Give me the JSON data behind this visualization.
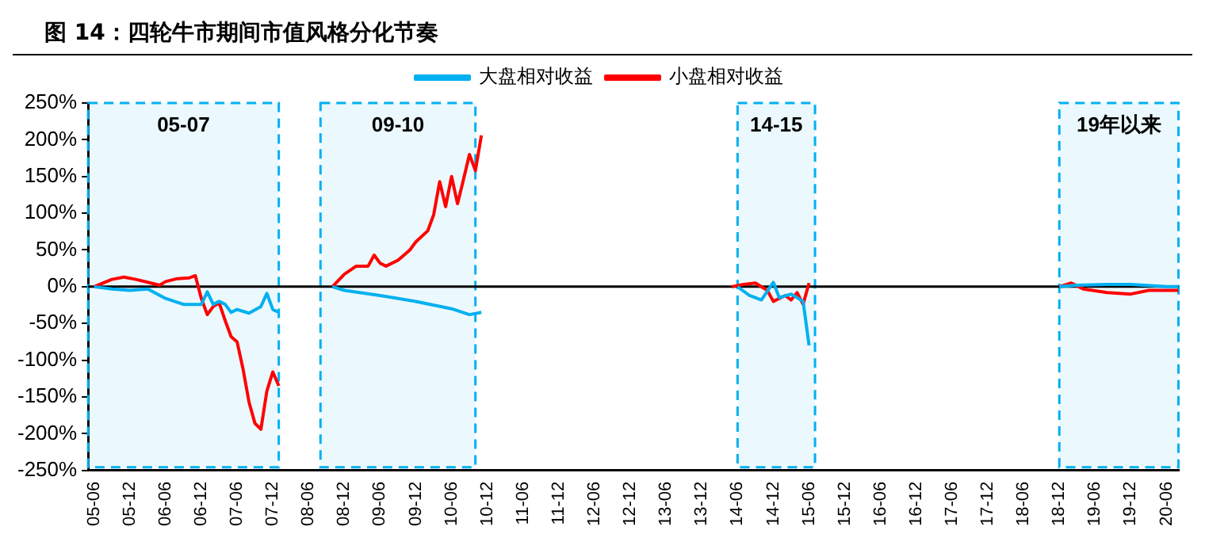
{
  "chart_data": {
    "type": "line",
    "title": "图 14：四轮牛市期间市值风格分化节奏",
    "xlim": [
      "2005-05",
      "2020-08"
    ],
    "xticks": [
      {
        "value": "2005-06",
        "label": "05-06"
      },
      {
        "value": "2005-12",
        "label": "05-12"
      },
      {
        "value": "2006-06",
        "label": "06-06"
      },
      {
        "value": "2006-12",
        "label": "06-12"
      },
      {
        "value": "2007-06",
        "label": "07-06"
      },
      {
        "value": "2007-12",
        "label": "07-12"
      },
      {
        "value": "2008-06",
        "label": "08-06"
      },
      {
        "value": "2008-12",
        "label": "08-12"
      },
      {
        "value": "2009-06",
        "label": "09-06"
      },
      {
        "value": "2009-12",
        "label": "09-12"
      },
      {
        "value": "2010-06",
        "label": "10-06"
      },
      {
        "value": "2010-12",
        "label": "10-12"
      },
      {
        "value": "2011-06",
        "label": "11-06"
      },
      {
        "value": "2011-12",
        "label": "11-12"
      },
      {
        "value": "2012-06",
        "label": "12-06"
      },
      {
        "value": "2012-12",
        "label": "12-12"
      },
      {
        "value": "2013-06",
        "label": "13-06"
      },
      {
        "value": "2013-12",
        "label": "13-12"
      },
      {
        "value": "2014-06",
        "label": "14-06"
      },
      {
        "value": "2014-12",
        "label": "14-12"
      },
      {
        "value": "2015-06",
        "label": "15-06"
      },
      {
        "value": "2015-12",
        "label": "15-12"
      },
      {
        "value": "2016-06",
        "label": "16-06"
      },
      {
        "value": "2016-12",
        "label": "16-12"
      },
      {
        "value": "2017-06",
        "label": "17-06"
      },
      {
        "value": "2017-12",
        "label": "17-12"
      },
      {
        "value": "2018-06",
        "label": "18-06"
      },
      {
        "value": "2018-12",
        "label": "18-12"
      },
      {
        "value": "2019-06",
        "label": "19-06"
      },
      {
        "value": "2019-12",
        "label": "19-12"
      },
      {
        "value": "2020-06",
        "label": "20-06"
      }
    ],
    "ylim": [
      -250,
      250
    ],
    "yticks": [
      {
        "value": -250,
        "label": "-250%"
      },
      {
        "value": -200,
        "label": "-200%"
      },
      {
        "value": -150,
        "label": "-150%"
      },
      {
        "value": -100,
        "label": "-100%"
      },
      {
        "value": -50,
        "label": "-50%"
      },
      {
        "value": 0,
        "label": "0%"
      },
      {
        "value": 50,
        "label": "50%"
      },
      {
        "value": 100,
        "label": "100%"
      },
      {
        "value": 150,
        "label": "150%"
      },
      {
        "value": 200,
        "label": "200%"
      },
      {
        "value": 250,
        "label": "250%"
      }
    ],
    "grid": false,
    "legend": "top",
    "marker": "none",
    "line_style": "solid",
    "series": [
      {
        "name": "大盘相对收益",
        "color": "#00b0f0",
        "x": [
          "2005-06",
          "2005-09",
          "2005-12",
          "2006-03",
          "2006-06",
          "2006-09",
          "2006-12",
          "2007-01",
          "2007-02",
          "2007-03",
          "2007-04",
          "2007-05",
          "2007-06",
          "2007-08",
          "2007-10",
          "2007-11",
          "2007-12",
          "2008-01",
          "2008-05",
          "2008-10",
          "2008-12",
          "2009-06",
          "2009-12",
          "2010-06",
          "2010-09",
          "2010-11",
          "2012-01",
          "2014-06",
          "2014-08",
          "2014-10",
          "2014-12",
          "2015-01",
          "2015-03",
          "2015-05",
          "2015-06",
          "2016-06",
          "2018-12",
          "2019-03",
          "2019-08",
          "2019-12",
          "2020-06",
          "2020-08"
        ],
        "values": [
          0,
          -3,
          -5,
          -3,
          -16,
          -24,
          -24,
          -7,
          -24,
          -20,
          -24,
          -35,
          -31,
          -36,
          -27,
          -9,
          -31,
          -35,
          null,
          0,
          -5,
          -12,
          -20,
          -30,
          -38,
          -35,
          null,
          0,
          -12,
          -18,
          6,
          -15,
          -10,
          -20,
          -80,
          null,
          0,
          2,
          3,
          3,
          0,
          0
        ]
      },
      {
        "name": "小盘相对收益",
        "color": "#ff0000",
        "x": [
          "2005-06",
          "2005-09",
          "2005-11",
          "2006-01",
          "2006-03",
          "2006-05",
          "2006-06",
          "2006-08",
          "2006-10",
          "2006-11",
          "2006-12",
          "2007-01",
          "2007-02",
          "2007-03",
          "2007-04",
          "2007-05",
          "2007-06",
          "2007-07",
          "2007-08",
          "2007-09",
          "2007-10",
          "2007-11",
          "2007-12",
          "2008-01",
          "2008-05",
          "2008-10",
          "2008-12",
          "2009-02",
          "2009-04",
          "2009-05",
          "2009-06",
          "2009-07",
          "2009-09",
          "2009-11",
          "2009-12",
          "2010-02",
          "2010-03",
          "2010-04",
          "2010-05",
          "2010-06",
          "2010-07",
          "2010-08",
          "2010-09",
          "2010-10",
          "2010-11",
          "2012-01",
          "2014-05",
          "2014-07",
          "2014-09",
          "2014-11",
          "2014-12",
          "2015-02",
          "2015-03",
          "2015-04",
          "2015-05",
          "2015-06",
          "2016-06",
          "2018-12",
          "2019-02",
          "2019-04",
          "2019-08",
          "2019-12",
          "2020-03",
          "2020-06",
          "2020-08"
        ],
        "values": [
          0,
          10,
          13,
          10,
          6,
          2,
          7,
          11,
          12,
          15,
          -16,
          -38,
          -27,
          -22,
          -46,
          -68,
          -75,
          -112,
          -157,
          -186,
          -194,
          -142,
          -116,
          -135,
          null,
          0,
          17,
          28,
          28,
          43,
          32,
          28,
          36,
          50,
          61,
          76,
          98,
          143,
          109,
          150,
          113,
          146,
          180,
          158,
          206,
          null,
          0,
          3,
          5,
          -5,
          -20,
          -12,
          -18,
          -8,
          -24,
          5,
          null,
          0,
          5,
          -3,
          -8,
          -10,
          -5,
          -5,
          -5
        ]
      }
    ],
    "ref_lines": [
      {
        "axis": "y",
        "value": 0,
        "color": "#000000"
      }
    ],
    "bands": [
      {
        "axis": "x",
        "from": "2005-05",
        "to": "2008-01",
        "label": "05-07",
        "color": "#00b0f0"
      },
      {
        "axis": "x",
        "from": "2008-08",
        "to": "2010-10",
        "label": "09-10",
        "color": "#00b0f0"
      },
      {
        "axis": "x",
        "from": "2014-06",
        "to": "2015-07",
        "label": "14-15",
        "color": "#00b0f0"
      },
      {
        "axis": "x",
        "from": "2018-12",
        "to": "2020-08",
        "label": "19年以来",
        "color": "#00b0f0"
      }
    ]
  }
}
